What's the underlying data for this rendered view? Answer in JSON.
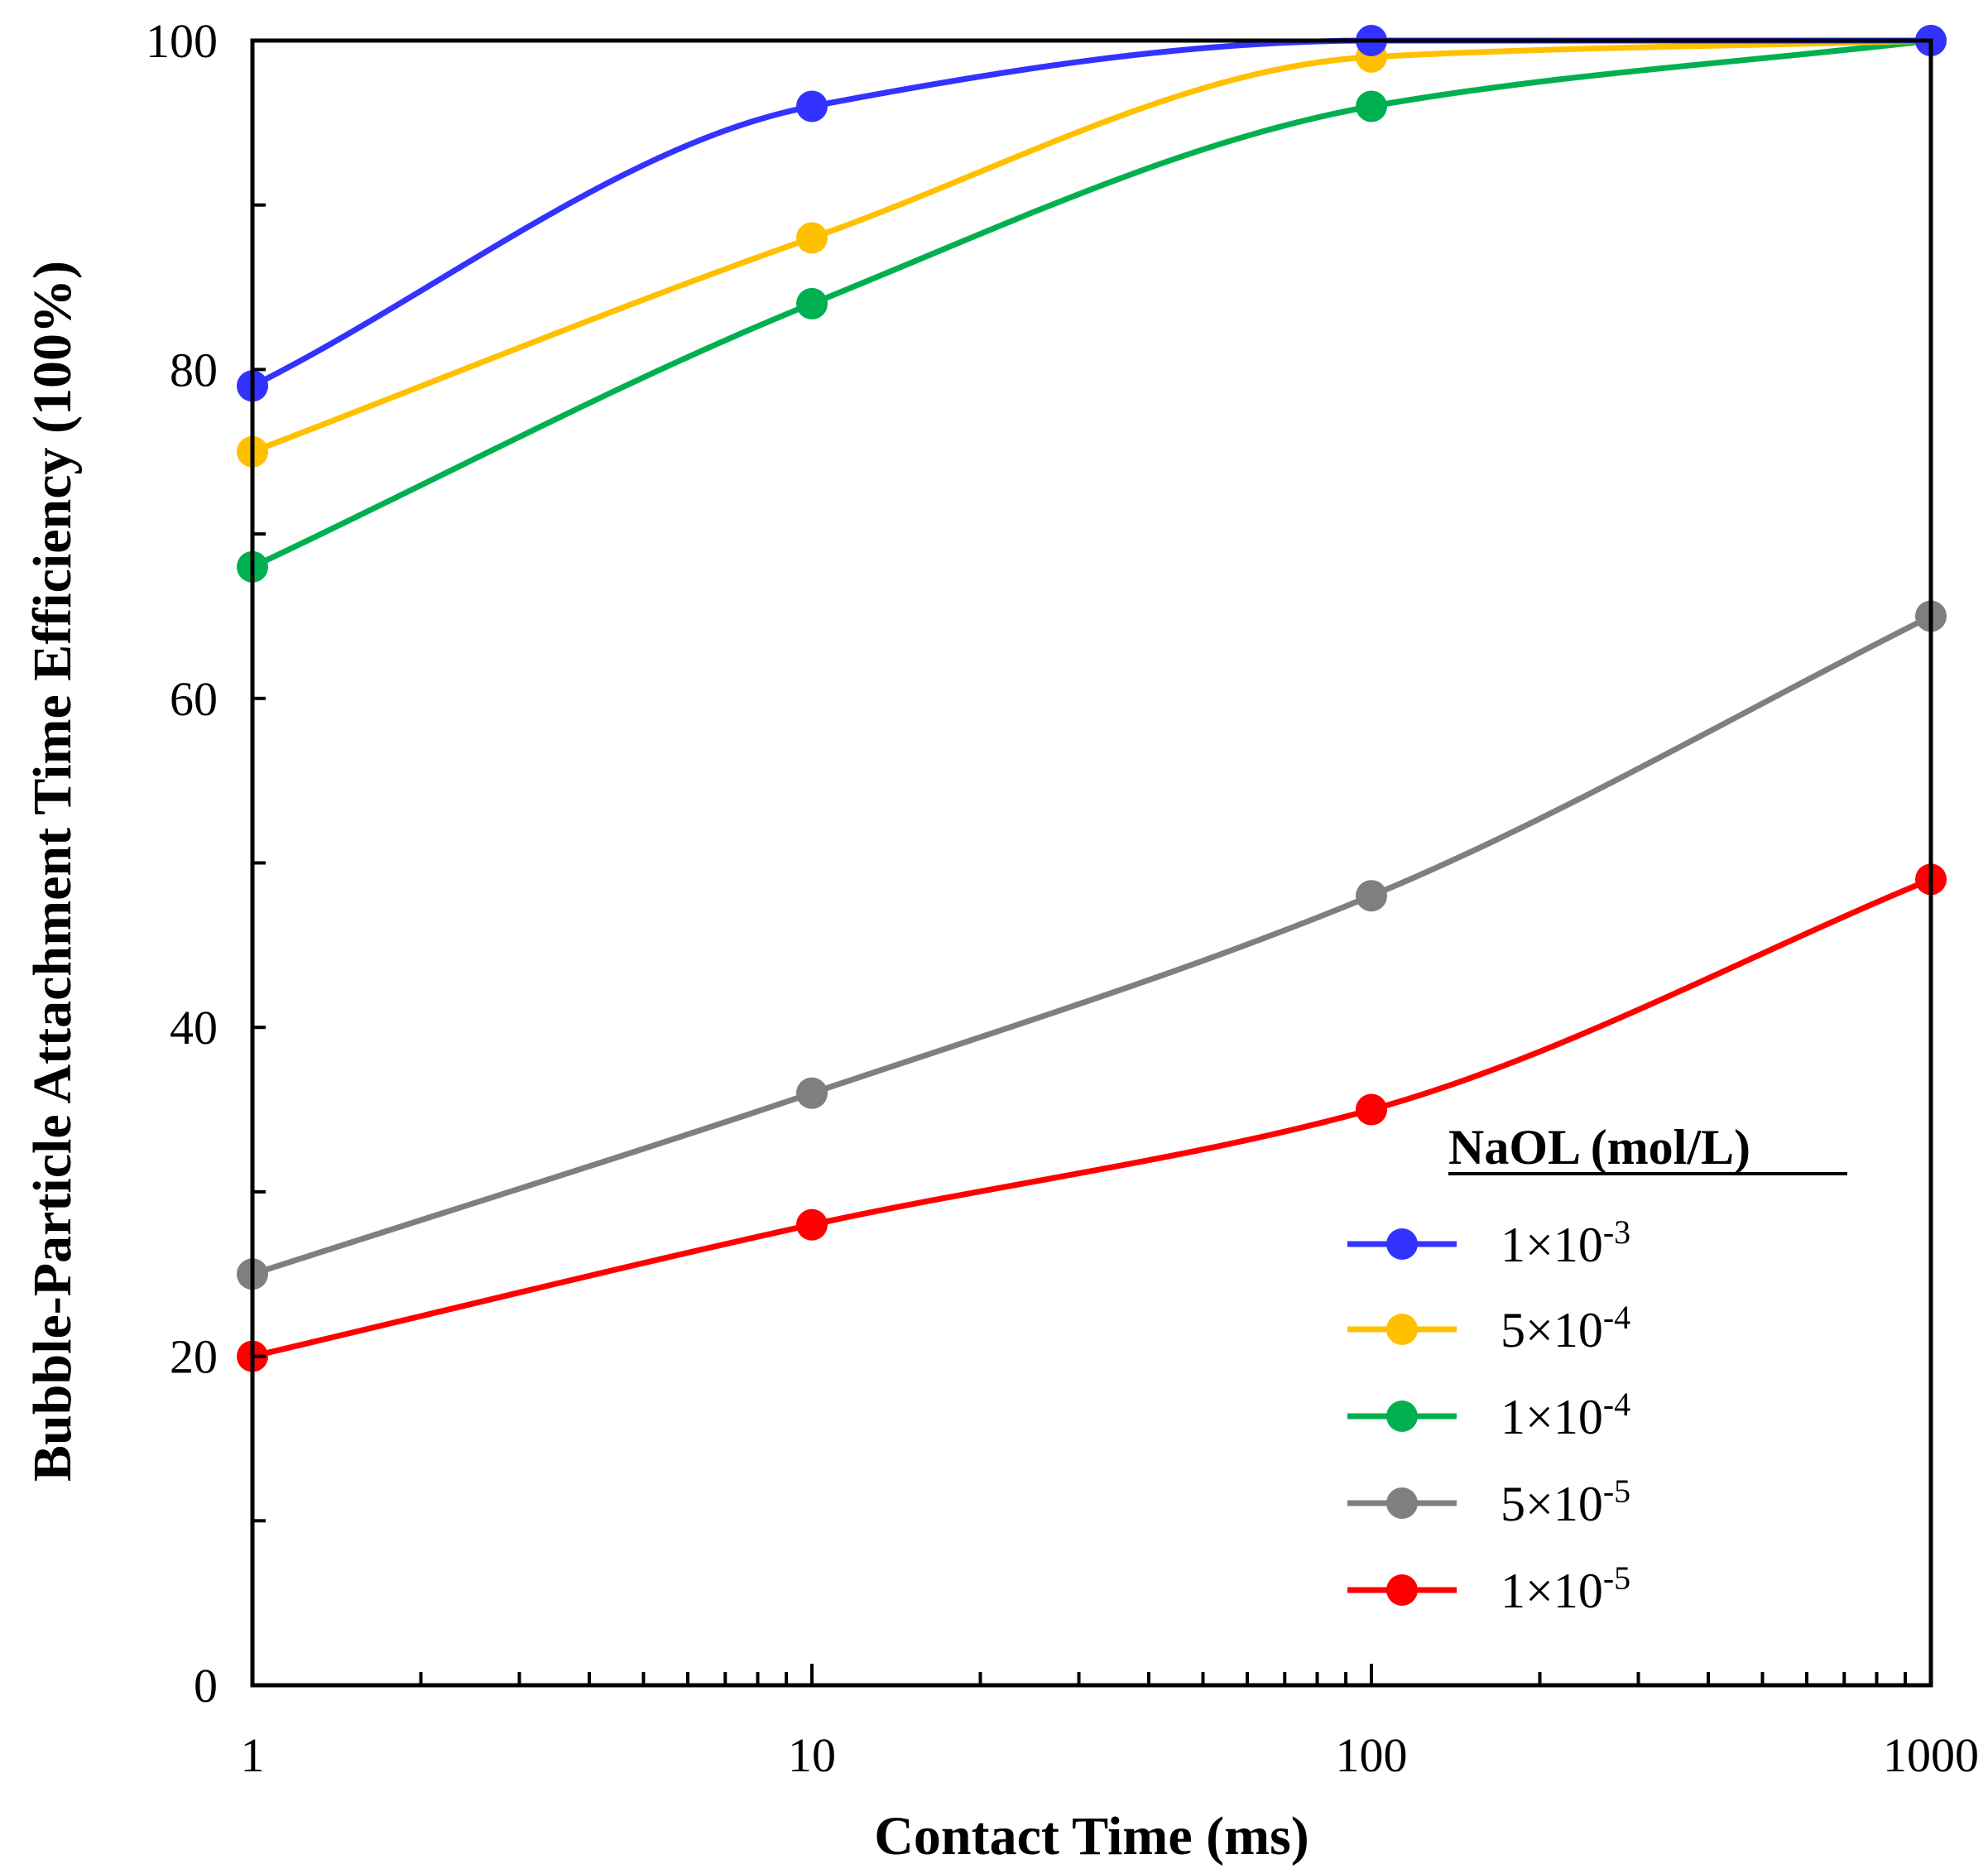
{
  "chart_data": {
    "type": "line",
    "x_scale": "log",
    "xlabel": "Contact Time (ms)",
    "ylabel": "Bubble-Particle Attachment Time Efficiency (100%)",
    "xlim": [
      1,
      1000
    ],
    "ylim": [
      0,
      100
    ],
    "x": [
      1,
      10,
      100,
      1000
    ],
    "x_tick_labels": [
      "1",
      "10",
      "100",
      "1000"
    ],
    "y_tick_values": [
      0,
      20,
      40,
      60,
      80,
      100
    ],
    "y_tick_labels": [
      "0",
      "20",
      "40",
      "60",
      "80",
      "100"
    ],
    "grid": false,
    "legend": {
      "title": "NaOL (mol/L)",
      "position": "bottom-right"
    },
    "series": [
      {
        "name": "1×10",
        "exponent": "-3",
        "color": "#3333ff",
        "values": [
          79,
          96,
          100,
          100
        ]
      },
      {
        "name": "5×10",
        "exponent": "-4",
        "color": "#ffc000",
        "values": [
          75,
          88,
          99,
          100
        ]
      },
      {
        "name": "1×10",
        "exponent": "-4",
        "color": "#00b050",
        "values": [
          68,
          84,
          96,
          100
        ]
      },
      {
        "name": "5×10",
        "exponent": "-5",
        "color": "#7f7f7f",
        "values": [
          25,
          36,
          48,
          65
        ]
      },
      {
        "name": "1×10",
        "exponent": "-5",
        "color": "#ff0000",
        "values": [
          20,
          28,
          35,
          49
        ]
      }
    ]
  }
}
